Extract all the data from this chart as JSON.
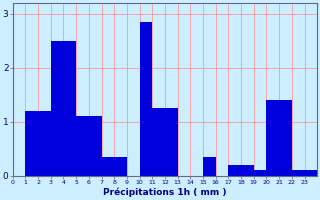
{
  "categories": [
    0,
    1,
    2,
    3,
    4,
    5,
    6,
    7,
    8,
    9,
    10,
    11,
    12,
    13,
    14,
    15,
    16,
    17,
    18,
    19,
    20,
    21,
    22,
    23
  ],
  "values": [
    0.0,
    1.2,
    1.2,
    2.5,
    2.5,
    1.1,
    1.1,
    0.35,
    0.35,
    0.0,
    2.85,
    1.25,
    1.25,
    0.0,
    0.0,
    0.35,
    0.0,
    0.2,
    0.2,
    0.1,
    1.4,
    1.4,
    0.1,
    0.1
  ],
  "bar_color": "#0000dd",
  "background_color": "#cceeff",
  "grid_color": "#ff8888",
  "axis_color": "#666688",
  "text_color": "#000088",
  "xlabel": "Précipitations 1h ( mm )",
  "ylim": [
    0,
    3.2
  ],
  "yticks": [
    0,
    1,
    2,
    3
  ],
  "figsize": [
    3.2,
    2.0
  ],
  "dpi": 100
}
